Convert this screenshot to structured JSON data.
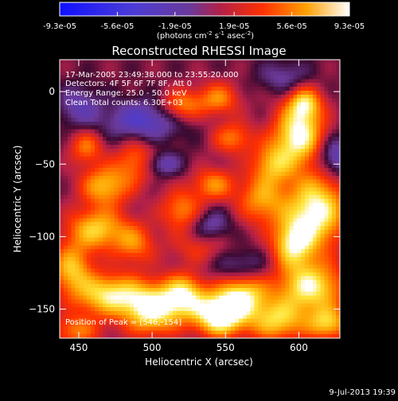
{
  "chart_data": {
    "type": "heatmap",
    "title": "Reconstructed RHESSI Image",
    "xlabel": "Heliocentric X (arcsec)",
    "ylabel": "Heliocentric Y (arcsec)",
    "xlim": [
      437,
      628
    ],
    "ylim": [
      -170,
      22
    ],
    "x_ticks": [
      450,
      500,
      550,
      600
    ],
    "y_ticks": [
      0,
      -50,
      -100,
      -150
    ],
    "colorbar": {
      "min": -9.3e-05,
      "max": 9.3e-05,
      "tick_labels": [
        "-9.3e-05",
        "-5.6e-05",
        "-1.9e-05",
        "1.9e-05",
        "5.6e-05",
        "9.3e-05"
      ],
      "unit_main": "(photons cm",
      "unit_sup1": "-2",
      "unit_mid": " s",
      "unit_sup2": "-1",
      "unit_end": " asec",
      "unit_sup3": "-2",
      "unit_close": ")"
    },
    "annotations": {
      "time": "17-Mar-2005 23:49:38.000 to 23:55:20.000",
      "detectors": "Detectors: 4F 5F 6F 7F 8F, Att 0",
      "energy": "Energy Range: 25.0 - 50.0 keV",
      "method": "Clean     Total counts: 6.30E+03",
      "peak": "Position of Peak = [546,-154]"
    },
    "footer_date": "9-Jul-2013 19:39",
    "sources": [
      {
        "x": 600,
        "y": -30,
        "sx": 12,
        "sy": 14,
        "amp": 1.0
      },
      {
        "x": 604,
        "y": -8,
        "sx": 8,
        "sy": 8,
        "amp": 0.7
      },
      {
        "x": 582,
        "y": -50,
        "sx": 10,
        "sy": 10,
        "amp": 0.6
      },
      {
        "x": 575,
        "y": -75,
        "sx": 12,
        "sy": 12,
        "amp": 0.6
      },
      {
        "x": 612,
        "y": -82,
        "sx": 14,
        "sy": 18,
        "amp": 1.0
      },
      {
        "x": 596,
        "y": -105,
        "sx": 10,
        "sy": 12,
        "amp": 0.8
      },
      {
        "x": 608,
        "y": -135,
        "sx": 16,
        "sy": 12,
        "amp": 0.9
      },
      {
        "x": 620,
        "y": -160,
        "sx": 10,
        "sy": 8,
        "amp": 0.7
      },
      {
        "x": 585,
        "y": -158,
        "sx": 14,
        "sy": 10,
        "amp": 0.75
      },
      {
        "x": 562,
        "y": -140,
        "sx": 12,
        "sy": 10,
        "amp": 0.8
      },
      {
        "x": 546,
        "y": -154,
        "sx": 12,
        "sy": 10,
        "amp": 1.2
      },
      {
        "x": 522,
        "y": -140,
        "sx": 10,
        "sy": 10,
        "amp": 0.8
      },
      {
        "x": 500,
        "y": -150,
        "sx": 14,
        "sy": 12,
        "amp": 1.0
      },
      {
        "x": 470,
        "y": -140,
        "sx": 16,
        "sy": 10,
        "amp": 0.85
      },
      {
        "x": 445,
        "y": -122,
        "sx": 10,
        "sy": 12,
        "amp": 0.7
      },
      {
        "x": 448,
        "y": -165,
        "sx": 12,
        "sy": 8,
        "amp": 0.5
      },
      {
        "x": 462,
        "y": -95,
        "sx": 14,
        "sy": 10,
        "amp": 0.75
      },
      {
        "x": 488,
        "y": -105,
        "sx": 10,
        "sy": 10,
        "amp": 0.5
      },
      {
        "x": 468,
        "y": -65,
        "sx": 12,
        "sy": 10,
        "amp": 0.7
      },
      {
        "x": 490,
        "y": -48,
        "sx": 10,
        "sy": 10,
        "amp": 0.55
      },
      {
        "x": 455,
        "y": -38,
        "sx": 8,
        "sy": 8,
        "amp": 0.5
      },
      {
        "x": 542,
        "y": -64,
        "sx": 10,
        "sy": 8,
        "amp": 0.55
      },
      {
        "x": 520,
        "y": -82,
        "sx": 10,
        "sy": 10,
        "amp": 0.55
      },
      {
        "x": 520,
        "y": -10,
        "sx": 10,
        "sy": 8,
        "amp": 0.6
      },
      {
        "x": 545,
        "y": -5,
        "sx": 10,
        "sy": 8,
        "amp": 0.55
      },
      {
        "x": 555,
        "y": -32,
        "sx": 10,
        "sy": 8,
        "amp": 0.5
      },
      {
        "x": 532,
        "y": -108,
        "sx": 14,
        "sy": 8,
        "amp": 0.3
      },
      {
        "x": 495,
        "y": -20,
        "sx": 20,
        "sy": 10,
        "amp": -0.5
      },
      {
        "x": 505,
        "y": -50,
        "sx": 10,
        "sy": 6,
        "amp": -0.45
      },
      {
        "x": 625,
        "y": -45,
        "sx": 10,
        "sy": 10,
        "amp": -0.5
      },
      {
        "x": 450,
        "y": -10,
        "sx": 10,
        "sy": 10,
        "amp": -0.35
      },
      {
        "x": 560,
        "y": -120,
        "sx": 14,
        "sy": 8,
        "amp": -0.3
      },
      {
        "x": 540,
        "y": -92,
        "sx": 10,
        "sy": 8,
        "amp": -0.35
      },
      {
        "x": 590,
        "y": 10,
        "sx": 12,
        "sy": 8,
        "amp": -0.3
      }
    ],
    "baseline": 0.18
  }
}
